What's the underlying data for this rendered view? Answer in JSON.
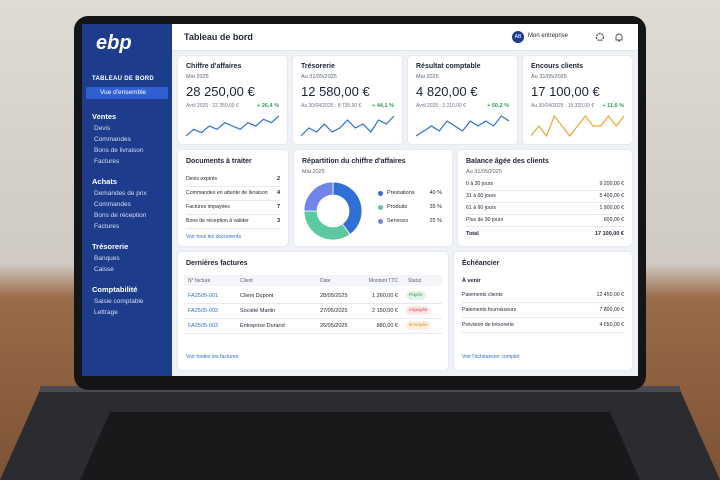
{
  "sidebar": {
    "logo": "ebp",
    "section": "TABLEAU DE BORD",
    "active": "Vue d'ensemble",
    "groups": [
      {
        "title": "Ventes",
        "items": [
          "Devis",
          "Commandes",
          "Bons de livraison",
          "Factures"
        ]
      },
      {
        "title": "Achats",
        "items": [
          "Demandes de prix",
          "Commandes",
          "Bons de réception",
          "Factures"
        ]
      },
      {
        "title": "Trésorerie",
        "items": [
          "Banques",
          "Caisse"
        ]
      },
      {
        "title": "Comptabilité",
        "items": [
          "Saisie comptable",
          "Lettrage"
        ]
      }
    ]
  },
  "header": {
    "title": "Tableau de bord",
    "avatar": "AB",
    "company": "Mon entreprise"
  },
  "kpis": [
    {
      "title": "Chiffre d'affaires",
      "period": "Mai 2025",
      "value": "28 250,00 €",
      "comparison": "Avril 2025 : 22 350,00 €",
      "change": "+ 26,4 %",
      "color": "#2f6fd6",
      "sparkline": [
        3,
        5,
        4,
        6,
        5,
        7,
        6,
        5,
        7,
        6,
        8,
        7,
        9
      ]
    },
    {
      "title": "Trésorerie",
      "period": "Au 31/05/2025",
      "value": "12 580,00 €",
      "comparison": "Au 30/04/2025 : 8 735,00 €",
      "change": "+ 44,1 %",
      "color": "#2f6fd6",
      "sparkline": [
        4,
        6,
        5,
        7,
        5,
        6,
        8,
        6,
        7,
        5,
        8,
        7,
        9
      ]
    },
    {
      "title": "Résultat comptable",
      "period": "Mai 2025",
      "value": "4 820,00 €",
      "comparison": "Avril 2025 : 3 210,00 €",
      "change": "+ 50,2 %",
      "color": "#2f6fd6",
      "sparkline": [
        4,
        5,
        6,
        5,
        7,
        6,
        5,
        7,
        6,
        7,
        6,
        8,
        7
      ]
    },
    {
      "title": "Encours clients",
      "period": "Au 31/05/2025",
      "value": "17 100,00 €",
      "comparison": "Au 30/04/2025 : 15 320,00 €",
      "change": "+ 11,6 %",
      "color": "#f0a830",
      "sparkline": [
        5,
        6,
        5,
        7,
        6,
        5,
        6,
        7,
        6,
        6,
        7,
        6,
        7
      ]
    }
  ],
  "documents": {
    "title": "Documents à traiter",
    "rows": [
      [
        "Devis expirés",
        "2"
      ],
      [
        "Commandes en attente de livraison",
        "4"
      ],
      [
        "Factures impayées",
        "7"
      ],
      [
        "Bons de réception à valider",
        "3"
      ]
    ],
    "link": "Voir tous les documents"
  },
  "revenue_split": {
    "title": "Répartition du chiffre d'affaires",
    "period": "Mai 2025",
    "items": [
      {
        "label": "Prestations",
        "value": 40,
        "value_label": "40 %",
        "color": "#2f6fd6"
      },
      {
        "label": "Produits",
        "value": 35,
        "value_label": "35 %",
        "color": "#5cc9a0"
      },
      {
        "label": "Services",
        "value": 25,
        "value_label": "25 %",
        "color": "#6f86e8"
      }
    ]
  },
  "aged_balance": {
    "title": "Balance âgée des clients",
    "date": "Au 31/05/2025",
    "rows": [
      [
        "0 à 30 jours",
        "9 200,00 €"
      ],
      [
        "31 à 60 jours",
        "5 400,00 €"
      ],
      [
        "61 à 90 jours",
        "1 900,00 €"
      ],
      [
        "Plus de 90 jours",
        "600,00 €"
      ]
    ],
    "total": [
      "Total",
      "17 100,00 €"
    ]
  },
  "invoices": {
    "title": "Dernières factures",
    "columns": [
      "N° facture",
      "Client",
      "Date",
      "Montant TTC",
      "Statut"
    ],
    "rows": [
      {
        "cells": [
          "FA2505-001",
          "Client Dupont",
          "28/05/2025",
          "1 260,00 €",
          "Payée"
        ],
        "status_color": "#2e9e5b"
      },
      {
        "cells": [
          "FA2505-002",
          "Société Martin",
          "27/05/2025",
          "2 150,00 €",
          "Impayée"
        ],
        "status_color": "#d9434e"
      },
      {
        "cells": [
          "FA2505-003",
          "Entreprise Durand",
          "26/05/2025",
          "880,00 €",
          "Envoyée"
        ],
        "status_color": "#e08a1e"
      }
    ],
    "link": "Voir toutes les factures"
  },
  "schedule": {
    "title": "Échéancier",
    "subtitle": "À venir",
    "rows": [
      [
        "Paiements clients",
        "12 450,00 €"
      ],
      [
        "Paiements fournisseurs",
        "7 800,00 €"
      ],
      [
        "Prévision de trésorerie",
        "4 650,00 €"
      ]
    ],
    "link": "Voir l'échéancier complet"
  }
}
